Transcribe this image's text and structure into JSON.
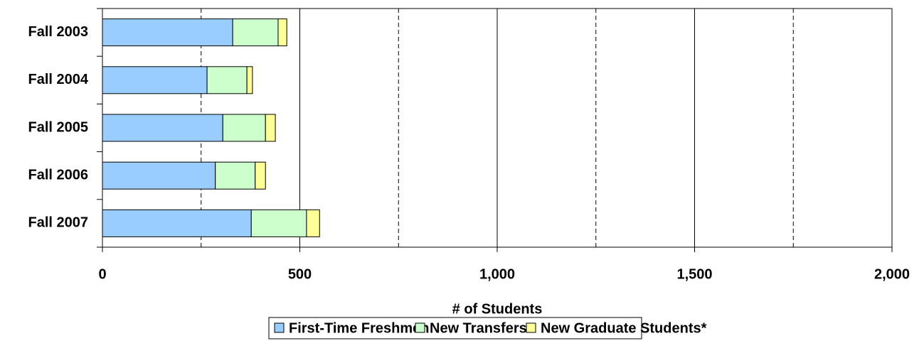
{
  "chart_data": {
    "type": "stacked_barh",
    "categories": [
      "Fall 2003",
      "Fall 2004",
      "Fall 2005",
      "Fall 2006",
      "Fall 2007"
    ],
    "series": [
      {
        "name": "First-Time Freshmen",
        "color": "#99ccff",
        "values": [
          330,
          265,
          305,
          286,
          377
        ]
      },
      {
        "name": "New Transfers",
        "color": "#ccffcc",
        "values": [
          115,
          101,
          108,
          101,
          140
        ]
      },
      {
        "name": "New Graduate Students*",
        "color": "#ffff99",
        "values": [
          22,
          14,
          25,
          26,
          33
        ]
      }
    ],
    "xlabel": "# of Students",
    "xlim": [
      0,
      2000
    ],
    "xticks": [
      0,
      500,
      {
        "value": 1000,
        "label": "1,000"
      },
      {
        "value": 1500,
        "label": "1,500"
      },
      {
        "value": 2000,
        "label": "2,000"
      }
    ],
    "minor_xticks": [
      250,
      750,
      1250,
      1750
    ],
    "grid": true,
    "legend": "bottom"
  }
}
